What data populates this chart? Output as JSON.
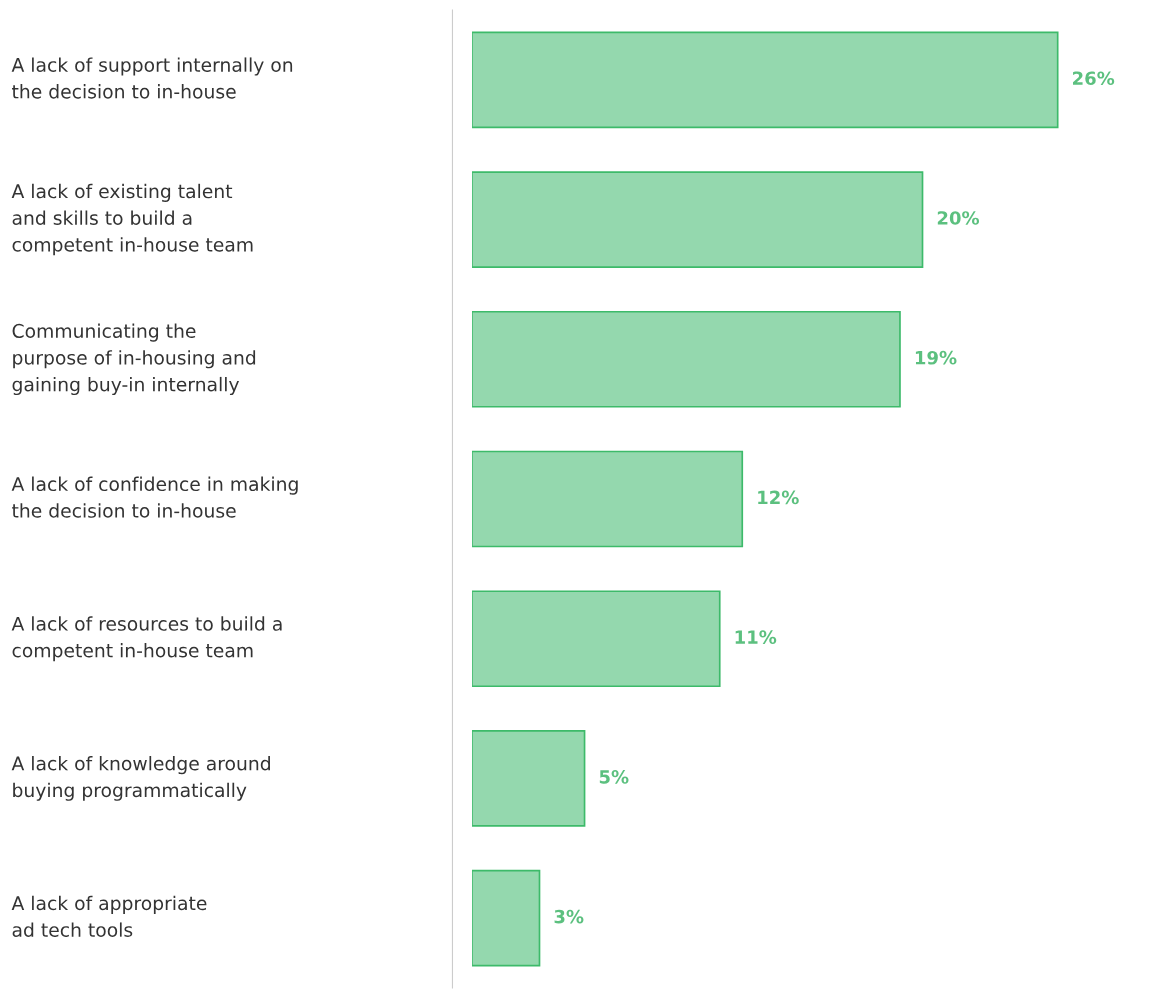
{
  "chart_data": {
    "type": "bar",
    "orientation": "horizontal",
    "categories": [
      "A lack of support internally on\nthe decision to in-house",
      "A lack of existing talent\nand skills to build a\ncompetent in-house team",
      "Communicating the\npurpose of in-housing and\ngaining buy-in internally",
      "A lack of confidence in making\nthe decision to in-house",
      "A lack of resources to build a\ncompetent in-house team",
      "A lack of knowledge around\nbuying programmatically",
      "A lack of appropriate\nad tech tools"
    ],
    "values": [
      26,
      20,
      19,
      12,
      11,
      5,
      3
    ],
    "value_labels": [
      "26%",
      "20%",
      "19%",
      "12%",
      "11%",
      "5%",
      "3%"
    ],
    "color": "#94d8ae"
  }
}
